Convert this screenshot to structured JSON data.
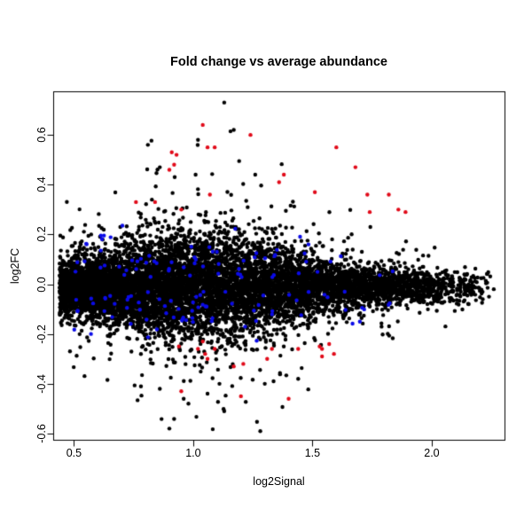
{
  "chart_data": {
    "type": "scatter",
    "title": "Fold change vs average abundance",
    "xlabel": "log2Signal",
    "ylabel": "log2FC",
    "xlim": [
      0.413,
      2.305
    ],
    "ylim": [
      -0.625,
      0.775
    ],
    "x_ticks": [
      0.5,
      1.0,
      1.5,
      2.0
    ],
    "y_ticks": [
      -0.6,
      -0.4,
      -0.2,
      0.0,
      0.2,
      0.4,
      0.6
    ],
    "grid": false,
    "legend": "none",
    "background": "#ffffff",
    "axis_color": "#000000",
    "point_radius": 2.2,
    "series": [
      {
        "name": "all-probes-black",
        "color": "#000000",
        "n": 9000,
        "generate": {
          "kind": "ma_cloud",
          "seed": 1337,
          "x_min": 0.44,
          "x_span": 1.81,
          "x_shape": 0.55,
          "y_mean": -0.012,
          "sd_base": 0.033,
          "sd_peak": 0.075,
          "sd_center": 1.05,
          "sd_width": 0.33,
          "outlier_prob": 0.075,
          "outlier_mult": 2.4,
          "y_clamp_lo": -0.6,
          "y_clamp_hi": 0.74
        },
        "extra_points": [
          [
            1.13,
            0.73
          ],
          [
            1.17,
            0.62
          ],
          [
            1.02,
            0.58
          ],
          [
            0.81,
            0.56
          ],
          [
            0.86,
            0.47
          ],
          [
            1.01,
            0.44
          ],
          [
            1.26,
            0.44
          ],
          [
            2.26,
            -0.02
          ],
          [
            2.24,
            -0.05
          ],
          [
            0.86,
            -0.42
          ],
          [
            1.11,
            -0.4
          ],
          [
            0.98,
            -0.48
          ],
          [
            1.06,
            -0.44
          ],
          [
            0.96,
            -0.46
          ],
          [
            1.13,
            -0.51
          ],
          [
            0.9,
            -0.58
          ],
          [
            1.3,
            -0.4
          ],
          [
            1.44,
            -0.38
          ]
        ]
      },
      {
        "name": "control-probes-blue",
        "color": "#0b0be8",
        "n": 135,
        "generate": {
          "kind": "bands",
          "seed": 77,
          "x_min": 0.5,
          "x_span": 1.45,
          "x_shape": 0.65,
          "band_offset": 0.028,
          "band_sd": 0.085,
          "y_clamp": 0.31
        }
      },
      {
        "name": "significant-probes-red",
        "color": "#e10a19",
        "points": [
          [
            1.04,
            0.64
          ],
          [
            1.24,
            0.6
          ],
          [
            1.06,
            0.55
          ],
          [
            1.09,
            0.55
          ],
          [
            0.91,
            0.53
          ],
          [
            0.93,
            0.52
          ],
          [
            0.92,
            0.48
          ],
          [
            0.9,
            0.46
          ],
          [
            1.6,
            0.55
          ],
          [
            1.68,
            0.47
          ],
          [
            1.38,
            0.44
          ],
          [
            1.36,
            0.41
          ],
          [
            1.51,
            0.37
          ],
          [
            1.07,
            0.36
          ],
          [
            1.73,
            0.36
          ],
          [
            1.82,
            0.36
          ],
          [
            0.76,
            0.33
          ],
          [
            0.84,
            0.33
          ],
          [
            0.95,
            0.3
          ],
          [
            1.74,
            0.29
          ],
          [
            1.86,
            0.3
          ],
          [
            1.89,
            0.29
          ],
          [
            0.94,
            -0.25
          ],
          [
            1.04,
            -0.23
          ],
          [
            1.02,
            -0.26
          ],
          [
            1.05,
            -0.28
          ],
          [
            1.06,
            -0.3
          ],
          [
            1.09,
            -0.26
          ],
          [
            1.33,
            -0.26
          ],
          [
            1.31,
            -0.3
          ],
          [
            1.44,
            -0.26
          ],
          [
            1.17,
            -0.33
          ],
          [
            1.21,
            -0.32
          ],
          [
            1.53,
            -0.25
          ],
          [
            1.57,
            -0.24
          ],
          [
            1.54,
            -0.26
          ],
          [
            1.54,
            -0.29
          ],
          [
            1.59,
            -0.28
          ],
          [
            0.95,
            -0.43
          ],
          [
            1.2,
            -0.45
          ],
          [
            1.4,
            -0.46
          ]
        ]
      }
    ]
  }
}
